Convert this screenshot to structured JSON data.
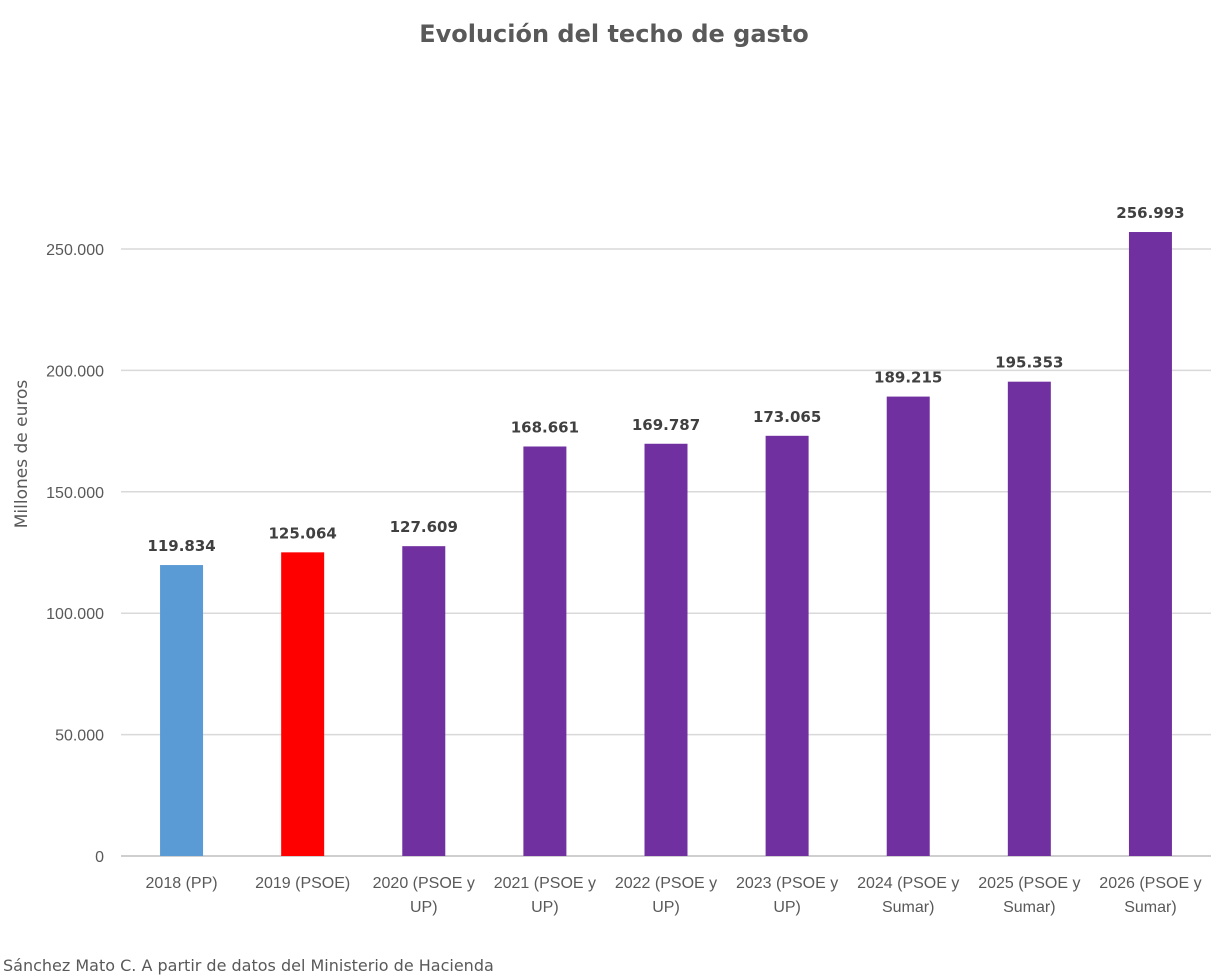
{
  "chart_data": {
    "type": "bar",
    "title": "Evolución del techo de gasto",
    "xlabel": "",
    "ylabel": "Millones de euros",
    "ylim": [
      0,
      250000
    ],
    "yticks": [
      0,
      50000,
      100000,
      150000,
      200000,
      250000
    ],
    "ytick_labels": [
      "0",
      "50.000",
      "100.000",
      "150.000",
      "200.000",
      "250.000"
    ],
    "grid": true,
    "categories": [
      [
        "2018 (PP)"
      ],
      [
        "2019 (PSOE)"
      ],
      [
        "2020 (PSOE y",
        "UP)"
      ],
      [
        "2021 (PSOE y",
        "UP)"
      ],
      [
        "2022 (PSOE y",
        "UP)"
      ],
      [
        "2023 (PSOE y",
        "UP)"
      ],
      [
        "2024 (PSOE y",
        "Sumar)"
      ],
      [
        "2025 (PSOE y",
        "Sumar)"
      ],
      [
        "2026 (PSOE y",
        "Sumar)"
      ]
    ],
    "values": [
      119834,
      125064,
      127609,
      168661,
      169787,
      173065,
      189215,
      195353,
      256993
    ],
    "value_labels": [
      "119.834",
      "125.064",
      "127.609",
      "168.661",
      "169.787",
      "173.065",
      "189.215",
      "195.353",
      "256.993"
    ],
    "colors": [
      "#5b9bd5",
      "#ff0000",
      "#7030a0",
      "#7030a0",
      "#7030a0",
      "#7030a0",
      "#7030a0",
      "#7030a0",
      "#7030a0"
    ]
  },
  "source_note": "Sánchez Mato C.  A partir de datos del Ministerio de Hacienda"
}
